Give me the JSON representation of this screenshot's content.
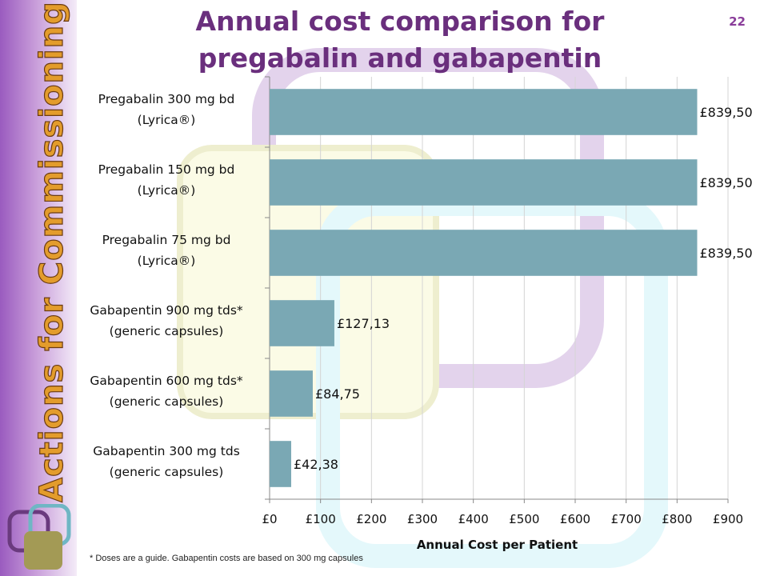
{
  "slide": {
    "title_line1": "Annual cost comparison for",
    "title_line2": "pregabalin and gabapentin",
    "page_number": "22",
    "side_text": "Actions for Commissioning Teams",
    "footnote": "* Doses are a guide. Gabapentin costs are based on 300 mg capsules"
  },
  "chart_data": {
    "type": "bar",
    "orientation": "horizontal",
    "categories": [
      [
        "Pregabalin 300 mg bd",
        "(Lyrica®)"
      ],
      [
        "Pregabalin 150 mg bd",
        "(Lyrica®)"
      ],
      [
        "Pregabalin 75 mg bd",
        "(Lyrica®)"
      ],
      [
        "Gabapentin 900 mg tds*",
        "(generic capsules)"
      ],
      [
        "Gabapentin 600 mg tds*",
        "(generic capsules)"
      ],
      [
        "Gabapentin 300 mg tds",
        "(generic capsules)"
      ]
    ],
    "values": [
      839.5,
      839.5,
      839.5,
      127.13,
      84.75,
      42.38
    ],
    "value_labels": [
      "£839,50",
      "£839,50",
      "£839,50",
      "£127,13",
      "£84,75",
      "£42,38"
    ],
    "xlabel": "Annual Cost per Patient",
    "ylabel": "",
    "xlim": [
      0,
      900
    ],
    "xticks": [
      0,
      100,
      200,
      300,
      400,
      500,
      600,
      700,
      800,
      900
    ],
    "xtick_labels": [
      "£0",
      "£100",
      "£200",
      "£300",
      "£400",
      "£500",
      "£600",
      "£700",
      "£800",
      "£900"
    ],
    "grid": true,
    "legend": "none",
    "bar_color": "#7aa8b4"
  }
}
